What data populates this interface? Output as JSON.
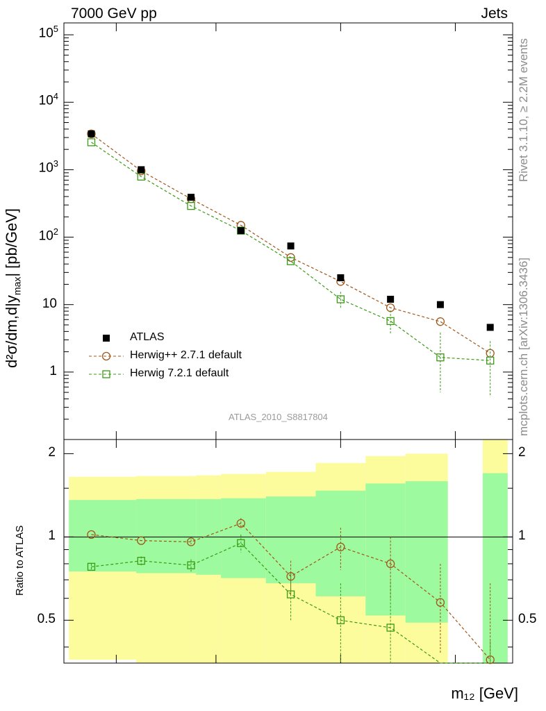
{
  "header": {
    "left": "7000 GeV pp",
    "right": "Jets"
  },
  "side_labels": {
    "rivet": "Rivet 3.1.10, ≥ 2.2M events",
    "mcplots": "mcplots.cern.ch [arXiv:1306.3436]"
  },
  "chart_data": {
    "type": "scatter",
    "analysis_label": "ATLAS_2010_S8817804",
    "main": {
      "ylabel": "d²σ/dm,d|y_max| [pb/GeV]",
      "ylim": [
        0.1,
        150000
      ],
      "yscale": "log",
      "yticks": [
        "10⁵",
        "10⁴",
        "10³",
        "10²",
        "10",
        "1"
      ]
    },
    "ratio": {
      "ylabel": "Ratio to ATLAS",
      "ylim": [
        0.35,
        2.25
      ],
      "yscale": "log",
      "yticks": [
        "2",
        "1",
        "0.5"
      ]
    },
    "xlabel": "m₁₂ [GeV]",
    "colors": {
      "atlas": "#000000",
      "herwigpp": "#a0561a",
      "herwig7": "#3a9a14",
      "band_inner": "#9efa9e",
      "band_outer": "#fcfc9c"
    },
    "series": [
      {
        "name": "ATLAS",
        "marker": "filled-square",
        "x": [
          1,
          2,
          3,
          4,
          5,
          6,
          7,
          8,
          9
        ],
        "values": [
          3400,
          1000,
          390,
          125,
          74,
          25,
          12,
          10,
          4.6
        ]
      },
      {
        "name": "Herwig++ 2.7.1 default",
        "marker": "open-circle",
        "x": [
          1,
          2,
          3,
          4,
          5,
          6,
          7,
          8,
          9
        ],
        "values": [
          3400,
          960,
          370,
          150,
          50,
          22,
          9,
          5.6,
          1.9
        ],
        "ratio": [
          1.02,
          0.97,
          0.96,
          1.12,
          0.72,
          0.92,
          0.8,
          0.58,
          0.36
        ],
        "ratio_err_low": [
          0,
          0,
          0.02,
          0.05,
          0.1,
          0.16,
          0.2,
          0.2,
          0.1
        ],
        "ratio_err_high": [
          0,
          0,
          0.02,
          0.05,
          0.1,
          0.16,
          0.2,
          0.22,
          0.32
        ]
      },
      {
        "name": "Herwig 7.2.1 default",
        "marker": "open-square",
        "x": [
          1,
          2,
          3,
          4,
          5,
          6,
          7,
          8,
          9
        ],
        "values": [
          2550,
          790,
          290,
          125,
          44,
          12,
          5.7,
          1.65,
          1.48
        ],
        "err_low": [
          0,
          0,
          0,
          0,
          0,
          3,
          2.1,
          1.15,
          1.05
        ],
        "err_high": [
          0,
          0,
          0,
          0,
          0,
          3.5,
          2.5,
          2.2,
          1.4
        ],
        "ratio": [
          0.78,
          0.82,
          0.79,
          0.95,
          0.62,
          0.5,
          0.47,
          0.16,
          0.32
        ],
        "ratio_err_low": [
          0.02,
          0.03,
          0.04,
          0.07,
          0.12,
          0.16,
          0.2,
          0.1,
          0.1
        ],
        "ratio_err_high": [
          0.02,
          0.03,
          0.04,
          0.07,
          0.12,
          0.18,
          0.22,
          0.1,
          0.1
        ]
      }
    ],
    "bands": [
      {
        "x0": 0.55,
        "x1": 1.9,
        "inner": [
          0.75,
          1.36
        ],
        "outer": [
          0.36,
          1.65
        ]
      },
      {
        "x0": 1.9,
        "x1": 3.1,
        "inner": [
          0.74,
          1.37
        ],
        "outer": [
          0.35,
          1.66
        ]
      },
      {
        "x0": 3.1,
        "x1": 3.6,
        "inner": [
          0.73,
          1.37
        ],
        "outer": [
          0.35,
          1.67
        ]
      },
      {
        "x0": 3.6,
        "x1": 4.5,
        "inner": [
          0.71,
          1.38
        ],
        "outer": [
          0.35,
          1.69
        ]
      },
      {
        "x0": 4.5,
        "x1": 5.5,
        "inner": [
          0.68,
          1.4
        ],
        "outer": [
          0.35,
          1.72
        ]
      },
      {
        "x0": 5.5,
        "x1": 6.5,
        "inner": [
          0.61,
          1.47
        ],
        "outer": [
          0.35,
          1.85
        ]
      },
      {
        "x0": 6.5,
        "x1": 7.3,
        "inner": [
          0.52,
          1.56
        ],
        "outer": [
          0.35,
          1.96
        ]
      },
      {
        "x0": 7.3,
        "x1": 8.15,
        "inner": [
          0.49,
          1.59
        ],
        "outer": [
          0.35,
          2.0
        ]
      },
      {
        "x0": 8.85,
        "x1": 9.35,
        "inner": [
          0.35,
          1.7
        ],
        "outer": [
          0.35,
          2.25
        ]
      }
    ]
  }
}
